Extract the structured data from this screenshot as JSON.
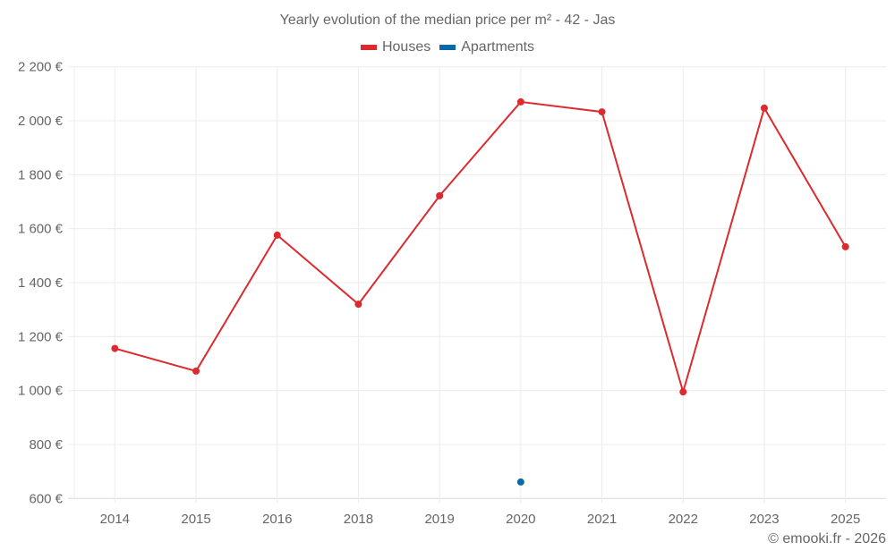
{
  "chart_data": {
    "type": "line",
    "title": "Yearly evolution of the median price per m² - 42 - Jas",
    "xlabel": "",
    "ylabel": "",
    "categories": [
      "2014",
      "2015",
      "2016",
      "2018",
      "2019",
      "2020",
      "2021",
      "2022",
      "2023",
      "2025"
    ],
    "series": [
      {
        "name": "Houses",
        "color": "#dc2a2e",
        "values": [
          1156,
          1072,
          1576,
          1320,
          1722,
          2070,
          2033,
          995,
          2047,
          1533
        ]
      },
      {
        "name": "Apartments",
        "color": "#0a6aa8",
        "values": [
          null,
          null,
          null,
          null,
          null,
          661,
          null,
          null,
          null,
          null
        ]
      }
    ],
    "yticks": [
      "600 €",
      "800 €",
      "1 000 €",
      "1 200 €",
      "1 400 €",
      "1 600 €",
      "1 800 €",
      "2 000 €",
      "2 200 €"
    ],
    "ylim": [
      600,
      2200
    ],
    "grid": true,
    "legend_position": "top"
  },
  "header": {
    "title": "Yearly evolution of the median price per m² - 42 - Jas"
  },
  "legend": {
    "items": [
      {
        "label": "Houses",
        "color": "#dc2a2e"
      },
      {
        "label": "Apartments",
        "color": "#0a6aa8"
      }
    ]
  },
  "footer": {
    "credit": "© emooki.fr - 2026"
  }
}
